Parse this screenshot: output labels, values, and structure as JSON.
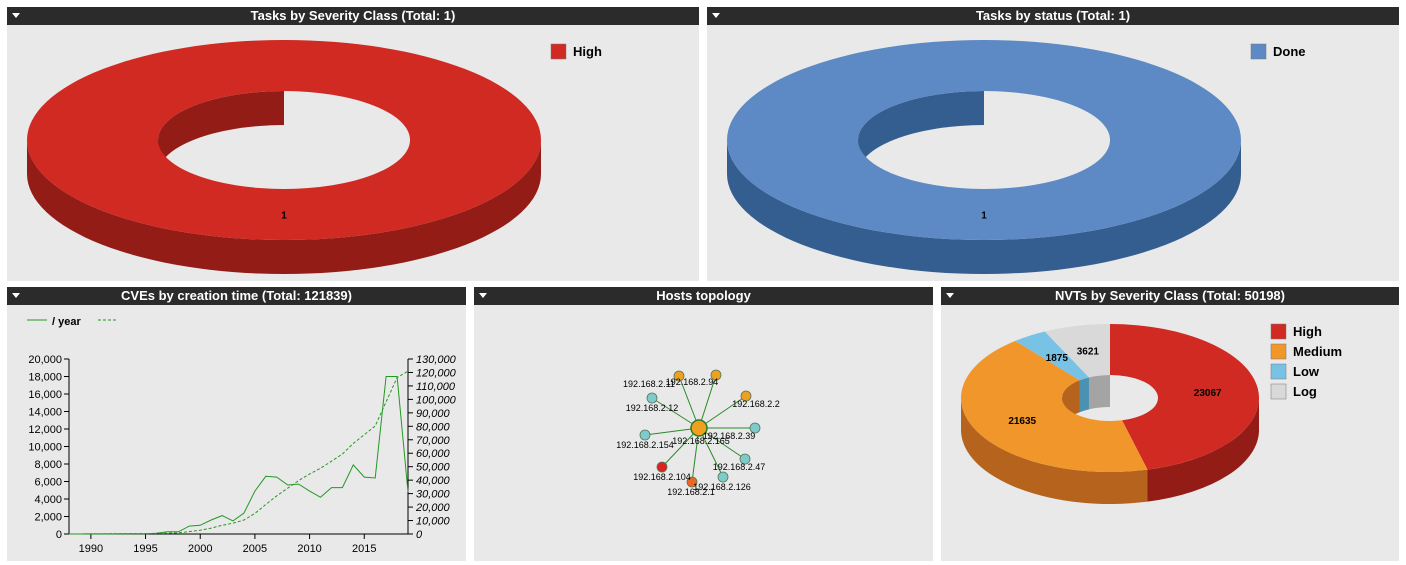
{
  "panels": {
    "severity": {
      "title": "Tasks by Severity Class (Total: 1)"
    },
    "status": {
      "title": "Tasks by status (Total: 1)"
    },
    "cves": {
      "title": "CVEs by creation time (Total: 121839)"
    },
    "topology": {
      "title": "Hosts topology"
    },
    "nvts": {
      "title": "NVTs by Severity Class (Total: 50198)"
    }
  },
  "chart_data": [
    {
      "type": "pie",
      "variant": "3d-donut",
      "title": "Tasks by Severity Class (Total: 1)",
      "slices": [
        {
          "label": "High",
          "value": 1,
          "color": "#d02a23",
          "side_color": "#931c17"
        }
      ],
      "legend_position": "top-right"
    },
    {
      "type": "pie",
      "variant": "3d-donut",
      "title": "Tasks by status (Total: 1)",
      "slices": [
        {
          "label": "Done",
          "value": 1,
          "color": "#5d8ac4",
          "side_color": "#345d90"
        }
      ],
      "legend_position": "top-right"
    },
    {
      "type": "line",
      "title": "CVEs by creation time (Total: 121839)",
      "legend": [
        {
          "label": "/ year",
          "style": "solid"
        },
        {
          "label": "",
          "style": "dashed"
        }
      ],
      "color": "#229922",
      "x_ticks": [
        1990,
        1995,
        2000,
        2005,
        2010,
        2015
      ],
      "xlim": [
        1988,
        2019
      ],
      "left_axis": {
        "ylim": [
          0,
          20000
        ],
        "ticks": [
          "0",
          "2,000",
          "4,000",
          "6,000",
          "8,000",
          "10,000",
          "12,000",
          "14,000",
          "16,000",
          "18,000",
          "20,000"
        ]
      },
      "right_axis": {
        "ylim": [
          0,
          130000
        ],
        "ticks": [
          "0",
          "10,000",
          "20,000",
          "30,000",
          "40,000",
          "50,000",
          "60,000",
          "70,000",
          "80,000",
          "90,000",
          "100,000",
          "110,000",
          "120,000",
          "130,000"
        ]
      },
      "series": [
        {
          "name": "/ year",
          "axis": "left",
          "style": "solid",
          "x": [
            1988,
            1989,
            1990,
            1991,
            1992,
            1993,
            1994,
            1995,
            1996,
            1997,
            1998,
            1999,
            2000,
            2001,
            2002,
            2003,
            2004,
            2005,
            2006,
            2007,
            2008,
            2009,
            2010,
            2011,
            2012,
            2013,
            2014,
            2015,
            2016,
            2017,
            2018,
            2019
          ],
          "y": [
            2,
            3,
            10,
            15,
            12,
            20,
            25,
            40,
            80,
            250,
            250,
            900,
            1000,
            1600,
            2100,
            1500,
            2400,
            4900,
            6600,
            6500,
            5600,
            5700,
            4900,
            4200,
            5300,
            5300,
            7900,
            6500,
            6400,
            18000,
            18000,
            4800
          ]
        },
        {
          "name": "",
          "axis": "right",
          "style": "dashed",
          "x": [
            1988,
            1990,
            1995,
            1997,
            1998,
            1999,
            2000,
            2001,
            2002,
            2003,
            2004,
            2005,
            2006,
            2007,
            2008,
            2009,
            2010,
            2011,
            2012,
            2013,
            2014,
            2015,
            2016,
            2017,
            2018,
            2019
          ],
          "y": [
            0,
            50,
            300,
            600,
            900,
            1800,
            2800,
            4400,
            6500,
            8000,
            10400,
            15300,
            21900,
            28400,
            34000,
            39700,
            44600,
            48800,
            54100,
            59400,
            67300,
            73800,
            80200,
            98200,
            116200,
            121000
          ]
        }
      ]
    },
    {
      "type": "network",
      "title": "Hosts topology",
      "center": {
        "label": "192.168.2.165",
        "color": "#f0a020"
      },
      "nodes": [
        {
          "label": "192.168.2.11",
          "color": "#f0a020"
        },
        {
          "label": "192.168.2.94",
          "color": "#f0a020"
        },
        {
          "label": "192.168.2.2",
          "color": "#f0a020"
        },
        {
          "label": "192.168.2.39",
          "color": "#7fcbcb"
        },
        {
          "label": "192.168.2.47",
          "color": "#7fcbcb"
        },
        {
          "label": "192.168.2.126",
          "color": "#7fcbcb"
        },
        {
          "label": "192.168.2.1",
          "color": "#ee6622"
        },
        {
          "label": "192.168.2.104",
          "color": "#dd2222"
        },
        {
          "label": "192.168.2.154",
          "color": "#7fcbcb"
        },
        {
          "label": "192.168.2.12",
          "color": "#7fcbcb"
        }
      ]
    },
    {
      "type": "pie",
      "variant": "3d-donut",
      "title": "NVTs by Severity Class (Total: 50198)",
      "slices": [
        {
          "label": "High",
          "value": 23067,
          "color": "#d02a23",
          "side_color": "#931c17"
        },
        {
          "label": "Medium",
          "value": 21635,
          "color": "#f0962a",
          "side_color": "#b5631d"
        },
        {
          "label": "Low",
          "value": 1875,
          "color": "#78c2e6",
          "side_color": "#4a91b2"
        },
        {
          "label": "Log",
          "value": 3621,
          "color": "#d9d9d9",
          "side_color": "#a4a4a4"
        }
      ],
      "legend_position": "top-right"
    }
  ]
}
